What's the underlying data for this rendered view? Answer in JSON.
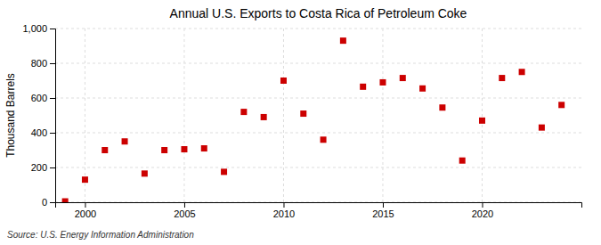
{
  "chart_data": {
    "type": "scatter",
    "title": "Annual U.S. Exports to Costa Rica of Petroleum Coke",
    "ylabel": "Thousand Barrels",
    "source": "Source: U.S. Energy Information Administration",
    "x": [
      1999,
      2000,
      2001,
      2002,
      2003,
      2004,
      2005,
      2006,
      2007,
      2008,
      2009,
      2010,
      2011,
      2012,
      2013,
      2014,
      2015,
      2016,
      2017,
      2018,
      2019,
      2020,
      2021,
      2022,
      2023,
      2024
    ],
    "values": [
      5,
      130,
      300,
      350,
      165,
      300,
      305,
      310,
      175,
      520,
      490,
      700,
      510,
      360,
      930,
      665,
      690,
      715,
      655,
      545,
      240,
      470,
      715,
      750,
      430,
      560
    ],
    "color": "#cc0000",
    "marker": "square",
    "xlim": [
      1998.5,
      2025
    ],
    "xticks": [
      2000,
      2005,
      2010,
      2015,
      2020
    ],
    "ylim": [
      0,
      1000
    ],
    "yticks": [
      0,
      200,
      400,
      600,
      800,
      {
        "value": 1000,
        "label": "1,000"
      }
    ],
    "grid": true
  }
}
